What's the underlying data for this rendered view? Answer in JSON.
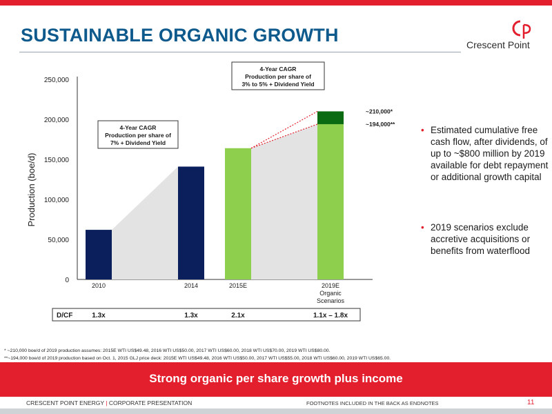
{
  "header": {
    "title": "SUSTAINABLE ORGANIC GROWTH",
    "logo_text": "Crescent Point",
    "colors": {
      "red": "#e31e2d",
      "title_blue": "#0f5a8c"
    }
  },
  "chart_data": {
    "type": "bar",
    "ylabel": "Production (boe/d)",
    "ylim": [
      0,
      250000
    ],
    "y_ticks": [
      "0",
      "50,000",
      "100,000",
      "150,000",
      "200,000",
      "250,000"
    ],
    "grid": false,
    "categories": [
      "2010",
      "2014",
      "2015E",
      "2019E Organic Scenarios"
    ],
    "category_lines": [
      [
        "2010"
      ],
      [
        "2014"
      ],
      [
        "2015E"
      ],
      [
        "2019E",
        "Organic",
        "Scenarios"
      ]
    ],
    "values": [
      62000,
      141000,
      164000,
      194000
    ],
    "upper_scenario": {
      "category": "2019E Organic Scenarios",
      "value": 210000
    },
    "bar_colors": [
      "#0a1f5c",
      "#0a1f5c",
      "#8ed04d",
      "#8ed04d"
    ],
    "upper_color": "#0a6b12",
    "annotations": {
      "cagr_left": [
        "4-Year CAGR",
        "Production per share of",
        "7% + Dividend Yield"
      ],
      "cagr_right": [
        "4-Year CAGR",
        "Production per share of",
        "3% to 5% + Dividend Yield"
      ],
      "label_210": "~210,000*",
      "label_194": "~194,000**"
    },
    "dcf": {
      "label": "D/CF",
      "values": [
        "1.3x",
        "1.3x",
        "2.1x",
        "1.1x – 1.8x"
      ]
    }
  },
  "bullets": [
    "Estimated cumulative free cash flow, after dividends, of up to ~$800 million by 2019 available for debt repayment or additional growth capital",
    "2019 scenarios exclude accretive acquisitions or benefits from waterflood"
  ],
  "footnotes": [
    "* ~210,000 boe/d of 2019 production assumes: 2015E WTI US$49.48, 2016 WTI US$50.00, 2017 WTI US$60.00, 2018 WTI US$70.00, 2019 WTI US$80.00.",
    "**~194,000 boe/d of 2019 production based on Oct. 1, 2015 GLJ price deck: 2015E WTI US$49.48, 2016 WTI US$50.00, 2017 WTI US$55.00, 2018 WTI US$60.00, 2019 WTI US$65.00."
  ],
  "banner": "Strong organic per share growth plus income",
  "footer": {
    "company": "CRESCENT POINT ENERGY",
    "separator": "|",
    "presentation": "CORPORATE PRESENTATION",
    "endnotes": "FOOTNOTES INCLUDED IN THE BACK AS ENDNOTES",
    "page": "11"
  }
}
